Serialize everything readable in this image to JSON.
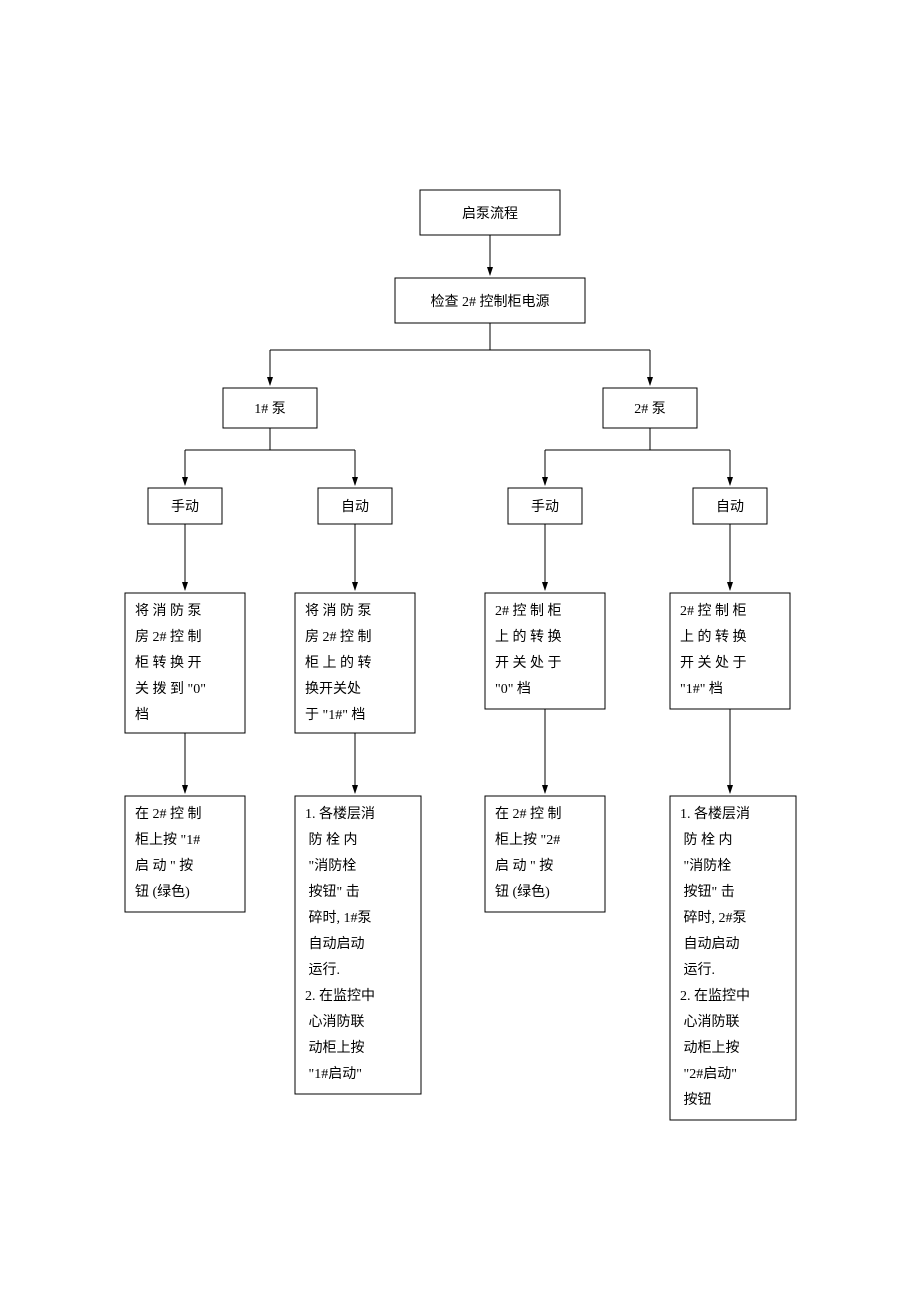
{
  "type": "flowchart",
  "background_color": "#ffffff",
  "stroke_color": "#000000",
  "stroke_width": 1,
  "font_family": "SimSun",
  "nodes": {
    "n1": {
      "label": "启泵流程",
      "fontsize": 14
    },
    "n2": {
      "label": "检查 2# 控制柜电源",
      "fontsize": 14
    },
    "n3": {
      "label": "1# 泵",
      "fontsize": 14
    },
    "n4": {
      "label": "2# 泵",
      "fontsize": 14
    },
    "n5": {
      "label": "手动",
      "fontsize": 14
    },
    "n6": {
      "label": "自动",
      "fontsize": 14
    },
    "n7": {
      "label": "手动",
      "fontsize": 14
    },
    "n8": {
      "label": "自动",
      "fontsize": 14
    },
    "n9": {
      "lines": [
        "将 消 防 泵",
        "房 2# 控 制",
        "柜 转 换 开",
        "关 拨 到 \"0\"",
        "档"
      ],
      "fontsize": 14
    },
    "n10": {
      "lines": [
        "将 消 防 泵",
        "房 2# 控 制",
        "柜 上 的 转",
        "换开关处",
        "于 \"1#\" 档"
      ],
      "fontsize": 14
    },
    "n11": {
      "lines": [
        "2# 控 制 柜",
        "上 的 转 换",
        "开 关 处 于",
        "\"0\" 档"
      ],
      "fontsize": 14
    },
    "n12": {
      "lines": [
        "2# 控 制 柜",
        "上 的 转 换",
        "开 关 处 于",
        "\"1#\" 档"
      ],
      "fontsize": 14
    },
    "n13": {
      "lines": [
        "在 2# 控 制",
        "柜上按 \"1#",
        "启 动 \" 按",
        "钮 (绿色)"
      ],
      "fontsize": 14
    },
    "n14": {
      "lines": [
        "1. 各楼层消",
        "  防  栓  内",
        "  \"消防栓",
        "  按钮\" 击",
        "  碎时, 1#泵",
        "  自动启动",
        "  运行.",
        "2. 在监控中",
        "  心消防联",
        "  动柜上按",
        "  \"1#启动\""
      ],
      "fontsize": 14
    },
    "n15": {
      "lines": [
        "在 2# 控 制",
        "柜上按 \"2#",
        "启 动 \" 按",
        "钮 (绿色)"
      ],
      "fontsize": 14
    },
    "n16": {
      "lines": [
        "1. 各楼层消",
        "  防  栓  内",
        "  \"消防栓",
        "  按钮\" 击",
        "  碎时, 2#泵",
        "  自动启动",
        "  运行.",
        "2. 在监控中",
        "  心消防联",
        "  动柜上按",
        "  \"2#启动\"",
        "  按钮"
      ],
      "fontsize": 14
    }
  }
}
